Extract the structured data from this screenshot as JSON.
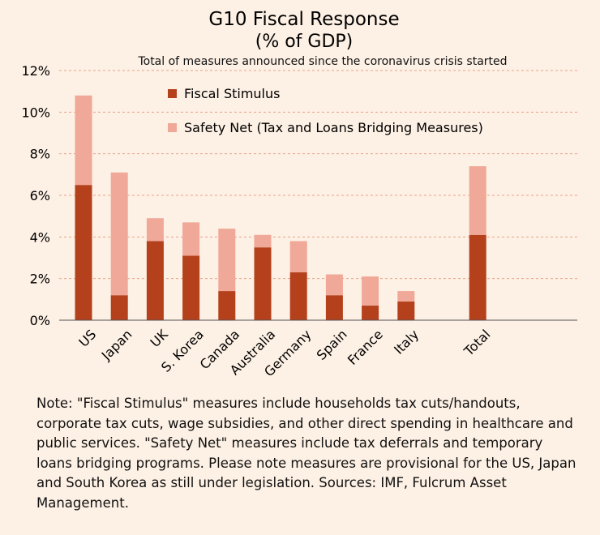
{
  "chart_data": {
    "type": "bar",
    "stacked": true,
    "title": "G10 Fiscal Response",
    "title_line2": "(% of GDP)",
    "subtitle": "Total of measures announced since the coronavirus crisis started",
    "categories": [
      "US",
      "Japan",
      "UK",
      "S. Korea",
      "Canada",
      "Australia",
      "Germany",
      "Spain",
      "France",
      "Italy",
      "Total"
    ],
    "series": [
      {
        "name": "Fiscal Stimulus",
        "color": "#b5401c",
        "values": [
          6.5,
          1.2,
          3.8,
          3.1,
          1.4,
          3.5,
          2.3,
          1.2,
          0.7,
          0.9,
          4.1
        ]
      },
      {
        "name": "Safety Net (Tax and Loans Bridging Measures)",
        "color": "#f0a898",
        "values": [
          4.3,
          5.9,
          1.1,
          1.6,
          3.0,
          0.6,
          1.5,
          1.0,
          1.4,
          0.5,
          3.3
        ]
      }
    ],
    "ylim": [
      0,
      12
    ],
    "yticks": [
      0,
      2,
      4,
      6,
      8,
      10,
      12
    ],
    "ytick_labels": [
      "0%",
      "2%",
      "4%",
      "6%",
      "8%",
      "10%",
      "12%"
    ],
    "grid": true,
    "legend_position": "top-left"
  },
  "note": "Note: \"Fiscal Stimulus\" measures include households tax cuts/handouts, corporate tax cuts, wage subsidies, and other direct spending in healthcare and public services. \"Safety Net\" measures include tax deferrals and temporary loans bridging programs. Please note measures are provisional for the US, Japan and South Korea as still under legislation. Sources: IMF, Fulcrum Asset Management.",
  "colors": {
    "background": "#fdf0e4",
    "grid": "#e8a48a",
    "axis": "#555555"
  }
}
